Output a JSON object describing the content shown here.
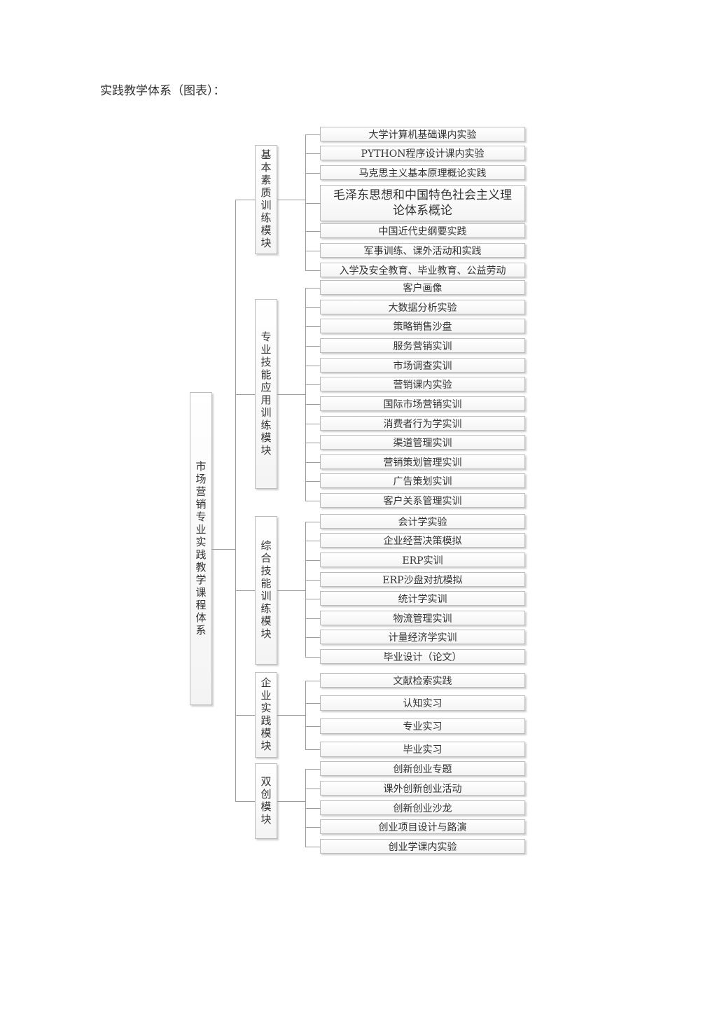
{
  "title": "实践教学体系（图表）：",
  "root": "市场营销专业实践教学课程体系",
  "modules": [
    {
      "name": "基本素质训练模块",
      "items": [
        "大学计算机基础课内实验",
        "PYTHON程序设计课内实验",
        "马克思主义基本原理概论实践",
        "毛泽东思想和中国特色社会主义理论体系概论",
        "中国近代史纲要实践",
        "军事训练、课外活动和实践",
        "入学及安全教育、毕业教育、公益劳动"
      ]
    },
    {
      "name": "专业技能应用训练模块",
      "items": [
        "客户画像",
        "大数据分析实验",
        "策略销售沙盘",
        "服务营销实训",
        "市场调查实训",
        "营销课内实验",
        "国际市场营销实训",
        "消费者行为学实训",
        "渠道管理实训",
        "营销策划管理实训",
        "广告策划实训",
        "客户关系管理实训"
      ]
    },
    {
      "name": "综合技能训练模块",
      "items": [
        "会计学实验",
        "企业经营决策模拟",
        "ERP实训",
        "ERP沙盘对抗模拟",
        "统计学实训",
        "物流管理实训",
        "计量经济学实训",
        "毕业设计（论文）"
      ]
    },
    {
      "name": "企业实践模块",
      "items": [
        "文献检索实践",
        "认知实习",
        "专业实习",
        "毕业实习"
      ]
    },
    {
      "name": "双创模块",
      "items": [
        "创新创业专题",
        "课外创新创业活动",
        "创新创业沙龙",
        "创业项目设计与路演",
        "创业学课内实验"
      ]
    }
  ]
}
